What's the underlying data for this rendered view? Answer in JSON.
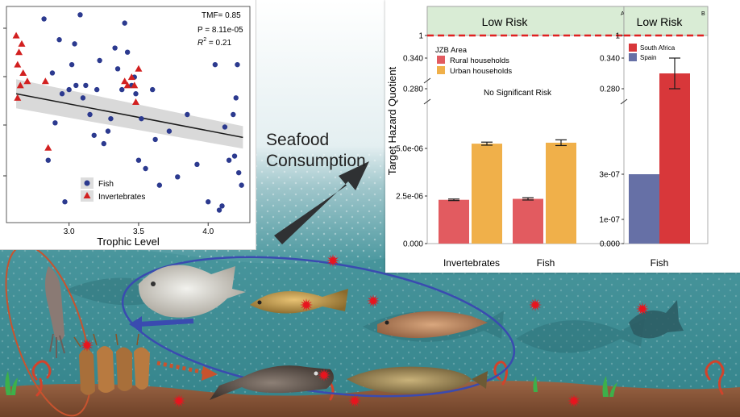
{
  "seafood_label_line1": "Seafood",
  "seafood_label_line2": "Consumption",
  "colors": {
    "sky": "#ffffff",
    "water_top": "#b9d6da",
    "water_deep": "#2f7f86",
    "sediment": "#8b5a3c",
    "fish_dot": "#2c3a8f",
    "invert_triangle": "#d22020",
    "rural": "#e25b60",
    "urban": "#f0b04a",
    "south_africa": "#d8373a",
    "spain": "#6670a6",
    "risk_band": "#d9ecd5",
    "risk_line": "#e02020",
    "food_web_fish_ring": "#3a4bb0",
    "food_web_invert_ring": "#c8532e",
    "contaminant_star": "#e8141e"
  },
  "icons": [
    "seafood-arrow-icon",
    "contaminant-star-icon",
    "fish-silhouette-icon",
    "squid-icon",
    "shrimp-icon",
    "pomfret-icon",
    "croaker-icon",
    "flatfish-icon",
    "catfish-icon",
    "sole-icon",
    "seaweed-icon",
    "worm-icon"
  ],
  "chart_data": [
    {
      "type": "scatter",
      "xlabel": "Trophic Level",
      "ylabel": "",
      "xlim": [
        2.55,
        4.3
      ],
      "ylim": [
        0,
        5.2
      ],
      "x_ticks": [
        "3.0",
        "3.5",
        "4.0"
      ],
      "annotations": {
        "tmf": "TMF= 0.85",
        "p": "P = 8.11e-05",
        "r2_prefix": "R",
        "r2_sup": "2",
        "r2_value": " = 0.21"
      },
      "legend": {
        "position": "bottom-left",
        "fish": "Fish",
        "invertebrates": "Invertebrates"
      },
      "regression": {
        "x": [
          2.62,
          4.25
        ],
        "y": [
          3.1,
          2.05
        ],
        "ci_lower": [
          2.75,
          1.78
        ],
        "ci_upper": [
          3.45,
          2.32
        ]
      },
      "series": [
        {
          "name": "Fish",
          "x": [
            2.82,
            2.9,
            2.95,
            2.97,
            3.0,
            3.02,
            3.04,
            3.08,
            3.1,
            3.12,
            3.15,
            3.18,
            3.2,
            3.22,
            3.25,
            3.28,
            3.3,
            3.35,
            3.38,
            3.4,
            3.42,
            3.45,
            3.47,
            3.5,
            3.52,
            3.55,
            3.6,
            3.65,
            3.72,
            3.78,
            3.85,
            3.92,
            4.0,
            4.05,
            4.08,
            4.12,
            4.15,
            4.18,
            4.2,
            4.22,
            4.24,
            2.85,
            2.88,
            3.05,
            3.33,
            3.62,
            4.1,
            4.19,
            4.21,
            2.93,
            3.48
          ],
          "y": [
            4.9,
            2.4,
            3.1,
            0.5,
            3.2,
            3.8,
            4.3,
            5.0,
            3.0,
            3.3,
            2.6,
            2.1,
            3.2,
            3.9,
            1.9,
            2.2,
            2.5,
            3.7,
            3.2,
            4.8,
            4.1,
            3.3,
            3.5,
            1.5,
            2.5,
            1.3,
            3.2,
            0.9,
            2.2,
            1.1,
            2.6,
            1.4,
            0.5,
            3.8,
            0.3,
            2.3,
            1.5,
            2.6,
            3.0,
            1.2,
            0.9,
            1.5,
            3.6,
            3.3,
            4.2,
            2.0,
            0.4,
            1.6,
            3.8,
            4.4,
            3.1
          ]
        },
        {
          "name": "Invertebrates",
          "x": [
            2.62,
            2.63,
            2.64,
            2.66,
            2.67,
            2.63,
            2.65,
            2.7,
            2.85,
            2.83,
            3.4,
            3.42,
            3.45,
            3.47,
            3.48,
            3.5
          ],
          "y": [
            4.5,
            3.8,
            4.1,
            4.3,
            3.6,
            3.0,
            3.3,
            3.4,
            1.8,
            3.4,
            3.4,
            3.3,
            3.5,
            3.3,
            2.9,
            3.7
          ]
        }
      ]
    },
    {
      "type": "bar",
      "panel_label": "A",
      "band_label": "Low Risk",
      "band_line_value": "1",
      "no_risk_label": "No Significant Risk",
      "ylabel": "Target Hazard Quotient",
      "y_ticks": [
        "0.000",
        "2.5e-06",
        "5.0e-06",
        "0.280",
        "0.340",
        "1"
      ],
      "axis_break": true,
      "legend": {
        "position": "top-left",
        "title": "JZB Area"
      },
      "categories": [
        "Invertebrates",
        "Fish"
      ],
      "series": [
        {
          "name": "Rural households",
          "values": [
            2.3e-06,
            2.35e-06
          ],
          "errors": [
            4e-08,
            6e-08
          ]
        },
        {
          "name": "Urban households",
          "values": [
            5.25e-06,
            5.3e-06
          ],
          "errors": [
            8e-08,
            1.5e-07
          ]
        }
      ]
    },
    {
      "type": "bar",
      "panel_label": "B",
      "band_label": "Low Risk",
      "band_line_value": "1",
      "y_ticks": [
        "0.000",
        "1e-07",
        "3e-07",
        "0.280",
        "0.340",
        "1"
      ],
      "axis_break": true,
      "legend": {
        "position": "top-left"
      },
      "categories": [
        "Fish"
      ],
      "series": [
        {
          "name": "South Africa",
          "values": [
            0.31
          ],
          "errors": [
            0.03
          ]
        },
        {
          "name": "Spain",
          "values": [
            3e-07
          ],
          "errors": [
            0
          ]
        }
      ]
    }
  ]
}
